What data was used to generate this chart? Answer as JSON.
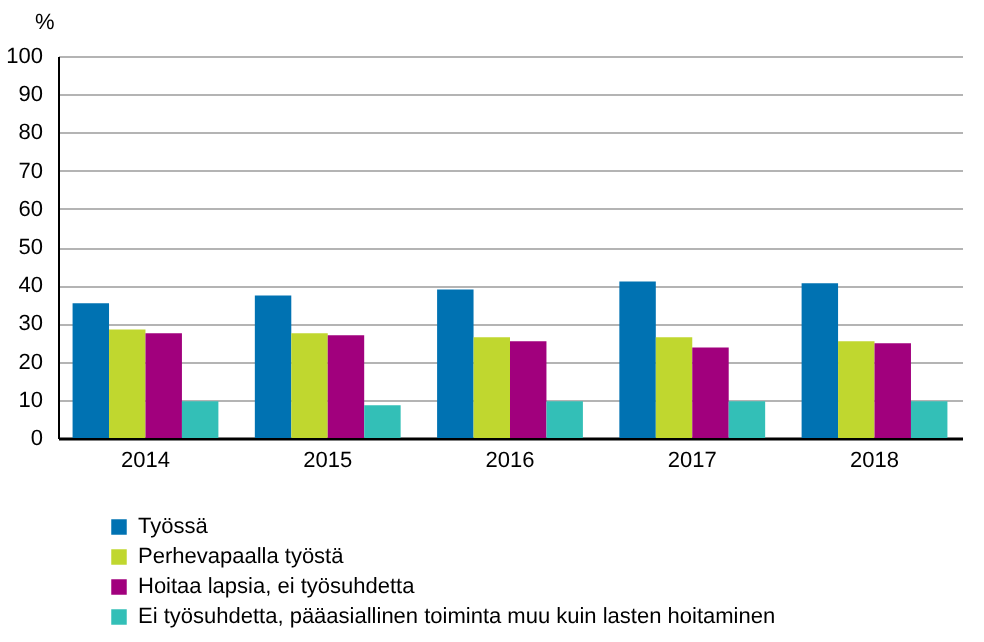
{
  "chart_data": {
    "type": "bar",
    "ylabel": "%",
    "categories": [
      "2014",
      "2015",
      "2016",
      "2017",
      "2018"
    ],
    "series": [
      {
        "name": "Työssä",
        "color": "#0072b2",
        "values": [
          35.3,
          37.3,
          38.9,
          41.0,
          40.5
        ]
      },
      {
        "name": "Perhevapaalla työstä",
        "color": "#c0d72f",
        "values": [
          28.4,
          27.4,
          26.4,
          26.4,
          25.3
        ]
      },
      {
        "name": "Hoitaa lapsia, ei työsuhdetta",
        "color": "#a1007d",
        "values": [
          27.4,
          26.9,
          25.3,
          23.7,
          24.8
        ]
      },
      {
        "name": "Ei työsuhdetta, pääasiallinen toiminta muu kuin lasten hoitaminen",
        "color": "#33bfb7",
        "values": [
          9.6,
          8.6,
          9.6,
          9.6,
          9.6
        ]
      }
    ],
    "ylim": [
      0,
      100
    ],
    "yticks": [
      0,
      10,
      20,
      30,
      40,
      50,
      60,
      70,
      80,
      90,
      100
    ],
    "grid": "y",
    "legend": "bottom"
  }
}
